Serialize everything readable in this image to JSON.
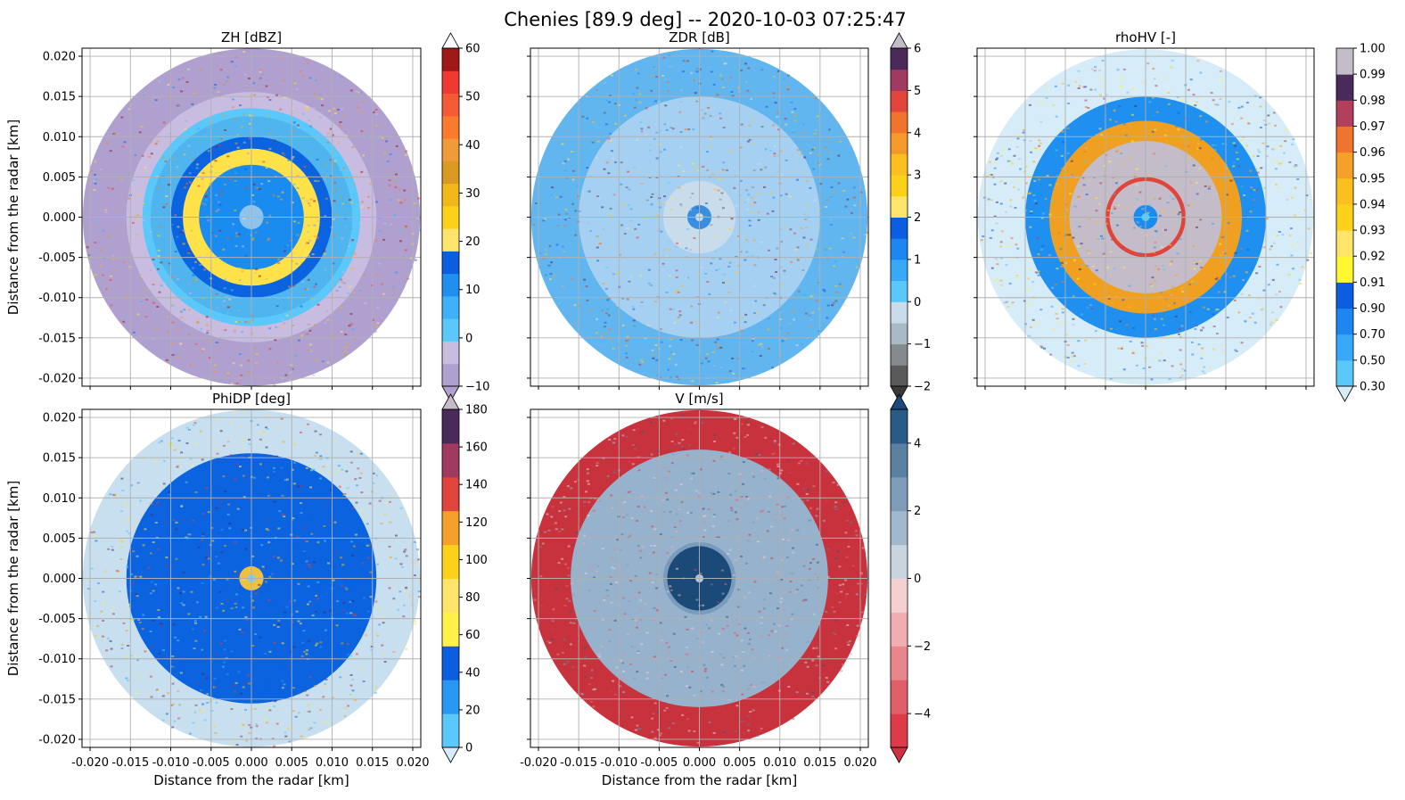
{
  "figure": {
    "suptitle": "Chenies [89.9 deg] -- 2020-10-03 07:25:47",
    "xlabel": "Distance from the radar [km]",
    "ylabel": "Distance from the radar [km]",
    "axis_ticks": [
      "-0.020",
      "-0.015",
      "-0.010",
      "-0.005",
      "0.000",
      "0.005",
      "0.010",
      "0.015",
      "0.020"
    ],
    "axis_tick_values": [
      -0.02,
      -0.015,
      -0.01,
      -0.005,
      0.0,
      0.005,
      0.01,
      0.015,
      0.02
    ],
    "axis_range": [
      -0.021,
      0.021
    ]
  },
  "chart_data": [
    {
      "type": "heatmap",
      "title": "ZH [dBZ]",
      "xlabel": "",
      "ylabel": "Distance from the radar [km]",
      "xlim": [
        -0.021,
        0.021
      ],
      "ylim": [
        -0.021,
        0.021
      ],
      "grid": true,
      "rings": [
        {
          "r": 0.0015,
          "color": "#8ec3ee"
        },
        {
          "r": 0.0065,
          "color": "#1a8cf0"
        },
        {
          "r": 0.0085,
          "color": "#ffe24a"
        },
        {
          "r": 0.01,
          "color": "#0b63e0"
        },
        {
          "r": 0.0125,
          "color": "#50b4ee"
        },
        {
          "r": 0.0135,
          "color": "#5ac8fa"
        },
        {
          "r": 0.0155,
          "color": "#c8bce0"
        },
        {
          "r": 0.0209,
          "color": "#b0a0d0"
        }
      ],
      "colorbar": {
        "label": "ZH [dBZ]",
        "range": [
          -10,
          60
        ],
        "ticks": [
          -10,
          0,
          10,
          20,
          30,
          40,
          50,
          60
        ],
        "tick_labels": [
          "−10",
          "0",
          "10",
          "20",
          "30",
          "40",
          "50",
          "60"
        ],
        "colors": [
          "#b0a0d0",
          "#c8bce0",
          "#5ac8fa",
          "#40b0f8",
          "#2090f0",
          "#0b5ee0",
          "#ffe46a",
          "#fdd11a",
          "#f0b818",
          "#d89a20",
          "#f09a3a",
          "#fb7a2e",
          "#f45a34",
          "#ee3a30",
          "#a01818"
        ],
        "extend_low_color": "#b0a0d0",
        "extend_high_color": "#ffffff"
      }
    },
    {
      "type": "heatmap",
      "title": "ZDR [dB]",
      "xlabel": "",
      "ylabel": "",
      "xlim": [
        -0.021,
        0.021
      ],
      "ylim": [
        -0.021,
        0.021
      ],
      "grid": true,
      "rings": [
        {
          "r": 0.0005,
          "color": "#c8dcec"
        },
        {
          "r": 0.0015,
          "color": "#3a8ee0"
        },
        {
          "r": 0.0045,
          "color": "#c8dcec"
        },
        {
          "r": 0.015,
          "color": "#a6d0f2"
        },
        {
          "r": 0.0209,
          "color": "#62b6ef"
        }
      ],
      "colorbar": {
        "label": "ZDR [dB]",
        "range": [
          -2,
          6
        ],
        "ticks": [
          -2,
          -1,
          0,
          1,
          2,
          3,
          4,
          5,
          6
        ],
        "tick_labels": [
          "−2",
          "−1",
          "0",
          "1",
          "2",
          "3",
          "4",
          "5",
          "6"
        ],
        "colors": [
          "#5a5a5a",
          "#848a8e",
          "#aabac4",
          "#c8dcec",
          "#5ac8fa",
          "#38a8f8",
          "#1e86f0",
          "#0b5ee0",
          "#ffe46a",
          "#fdd11a",
          "#fbbf20",
          "#f59a2a",
          "#f0742e",
          "#e0443a",
          "#a03a60",
          "#4a2a58"
        ],
        "extend_low_color": "#3a3a3a",
        "extend_high_color": "#c4bcc8"
      }
    },
    {
      "type": "heatmap",
      "title": "rhoHV [-]",
      "xlabel": "",
      "ylabel": "",
      "xlim": [
        -0.021,
        0.021
      ],
      "ylim": [
        -0.021,
        0.021
      ],
      "grid": true,
      "rings": [
        {
          "r": 0.0005,
          "color": "#5ac8fa"
        },
        {
          "r": 0.0015,
          "color": "#1a8cf0"
        },
        {
          "r": 0.0045,
          "color": "#c4bcc8"
        },
        {
          "r": 0.005,
          "color": "#e0443a"
        },
        {
          "r": 0.0095,
          "color": "#c4bcc8"
        },
        {
          "r": 0.012,
          "color": "#f0a020"
        },
        {
          "r": 0.015,
          "color": "#2090f0"
        },
        {
          "r": 0.0209,
          "color": "#d6ecf8"
        }
      ],
      "colorbar": {
        "label": "rhoHV [-]",
        "range": [
          0,
          13
        ],
        "ticks": [
          0,
          1,
          2,
          3,
          4,
          5,
          6,
          7,
          8,
          9,
          10,
          11,
          12,
          13
        ],
        "tick_labels": [
          "0.30",
          "0.50",
          "0.70",
          "0.90",
          "0.91",
          "0.92",
          "0.93",
          "0.94",
          "0.95",
          "0.96",
          "0.97",
          "0.98",
          "0.99",
          "1.00"
        ],
        "colors": [
          "#5ac8fa",
          "#38a8f8",
          "#1e86f0",
          "#0b5ee0",
          "#fff830",
          "#ffe46a",
          "#fdd11a",
          "#fbbf20",
          "#f5a028",
          "#f0742e",
          "#b0405c",
          "#4a2a58",
          "#c4bcc8"
        ],
        "extend_low_color": "#d6ecf8",
        "extend_high_color": null
      }
    },
    {
      "type": "heatmap",
      "title": "PhiDP [deg]",
      "xlabel": "Distance from the radar [km]",
      "ylabel": "Distance from the radar [km]",
      "xlim": [
        -0.021,
        0.021
      ],
      "ylim": [
        -0.021,
        0.021
      ],
      "grid": true,
      "rings": [
        {
          "r": 0.0005,
          "color": "#7ad0f8"
        },
        {
          "r": 0.0015,
          "color": "#f0c040"
        },
        {
          "r": 0.0155,
          "color": "#0b63e0"
        },
        {
          "r": 0.0209,
          "color": "#c8dff0"
        }
      ],
      "colorbar": {
        "label": "PhiDP [deg]",
        "range": [
          0,
          180
        ],
        "ticks": [
          0,
          20,
          40,
          60,
          80,
          100,
          120,
          140,
          160,
          180
        ],
        "tick_labels": [
          "0",
          "20",
          "40",
          "60",
          "80",
          "100",
          "120",
          "140",
          "160",
          "180"
        ],
        "colors": [
          "#5ac8fa",
          "#2898f4",
          "#0b5ee0",
          "#fff04a",
          "#ffe46a",
          "#fdd11a",
          "#f5a028",
          "#e0443a",
          "#a03a60",
          "#4a2a58"
        ],
        "extend_low_color": "#d6ecf8",
        "extend_high_color": "#c4bcc8"
      }
    },
    {
      "type": "heatmap",
      "title": "V [m/s]",
      "xlabel": "Distance from the radar [km]",
      "ylabel": "",
      "xlim": [
        -0.021,
        0.021
      ],
      "ylim": [
        -0.021,
        0.021
      ],
      "grid": true,
      "rings": [
        {
          "r": 0.0005,
          "color": "#b8c8d8"
        },
        {
          "r": 0.004,
          "color": "#1c4a78"
        },
        {
          "r": 0.0045,
          "color": "#7a9cbc"
        },
        {
          "r": 0.016,
          "color": "#97b2cc"
        },
        {
          "r": 0.0209,
          "color": "#c8323c"
        }
      ],
      "colorbar": {
        "label": "V [m/s]",
        "range": [
          -5,
          5
        ],
        "ticks": [
          -4,
          -2,
          0,
          2,
          4
        ],
        "tick_labels": [
          "−4",
          "−2",
          "0",
          "2",
          "4"
        ],
        "colors": [
          "#dc3c4a",
          "#e0606a",
          "#e8868e",
          "#f0aeb2",
          "#f4d0d0",
          "#c8d4de",
          "#a2b8cc",
          "#7e9cb8",
          "#5a80a2",
          "#2a5a86"
        ],
        "extend_low_color": "#d03040",
        "extend_high_color": "#1c4a78"
      }
    }
  ]
}
